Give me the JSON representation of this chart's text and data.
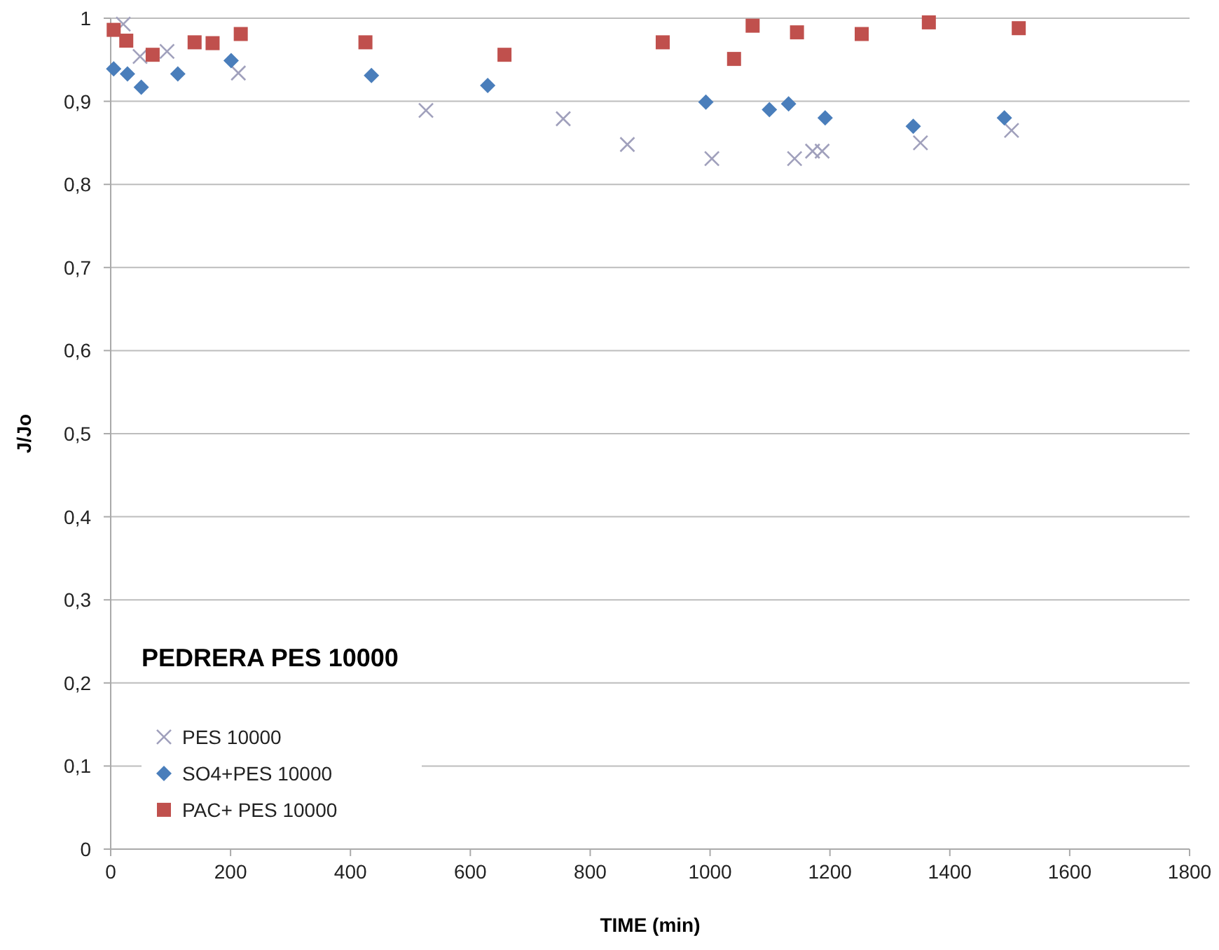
{
  "chart_data": {
    "type": "scatter",
    "xlabel": "TIME (min)",
    "ylabel": "J/Jo",
    "annotations": [
      "PEDRERA PES 10000"
    ],
    "xlim": [
      0,
      1800
    ],
    "xticks": [
      0,
      200,
      400,
      600,
      800,
      1000,
      1200,
      1400,
      1600,
      1800
    ],
    "ylim": [
      0,
      1
    ],
    "yticks": [
      0,
      {
        "value": 0.1,
        "label": "0,1"
      },
      {
        "value": 0.2,
        "label": "0,2"
      },
      {
        "value": 0.3,
        "label": "0,3"
      },
      {
        "value": 0.4,
        "label": "0,4"
      },
      {
        "value": 0.5,
        "label": "0,5"
      },
      {
        "value": 0.6,
        "label": "0,6"
      },
      {
        "value": 0.7,
        "label": "0,7"
      },
      {
        "value": 0.8,
        "label": "0,8"
      },
      {
        "value": 0.9,
        "label": "0,9"
      },
      1
    ],
    "grid": "y",
    "legend": "bottom left",
    "series": [
      {
        "name": "PES 10000",
        "color": "#a0a0bc",
        "marker": "cross",
        "x": [
          21,
          49,
          94,
          213,
          526,
          755,
          862,
          1003,
          1141,
          1171,
          1187,
          1351,
          1503
        ],
        "values": [
          0.993,
          0.954,
          0.96,
          0.934,
          0.889,
          0.879,
          0.848,
          0.831,
          0.831,
          0.84,
          0.84,
          0.85,
          0.865
        ]
      },
      {
        "name": "SO4+PES 10000",
        "color": "#4a7ebb",
        "marker": "diamond",
        "x": [
          5,
          28,
          51,
          112,
          201,
          435,
          629,
          993,
          1099,
          1131,
          1192,
          1339,
          1491
        ],
        "values": [
          0.939,
          0.933,
          0.917,
          0.933,
          0.949,
          0.931,
          0.919,
          0.899,
          0.89,
          0.897,
          0.88,
          0.87,
          0.88
        ]
      },
      {
        "name": "PAC+ PES 10000",
        "color": "#c0504d",
        "marker": "square",
        "x": [
          5,
          26,
          70,
          140,
          170,
          217,
          425,
          657,
          921,
          1040,
          1071,
          1145,
          1253,
          1365,
          1515
        ],
        "values": [
          0.986,
          0.973,
          0.956,
          0.971,
          0.97,
          0.981,
          0.971,
          0.956,
          0.971,
          0.951,
          0.991,
          0.983,
          0.981,
          0.995,
          0.988
        ]
      }
    ]
  }
}
